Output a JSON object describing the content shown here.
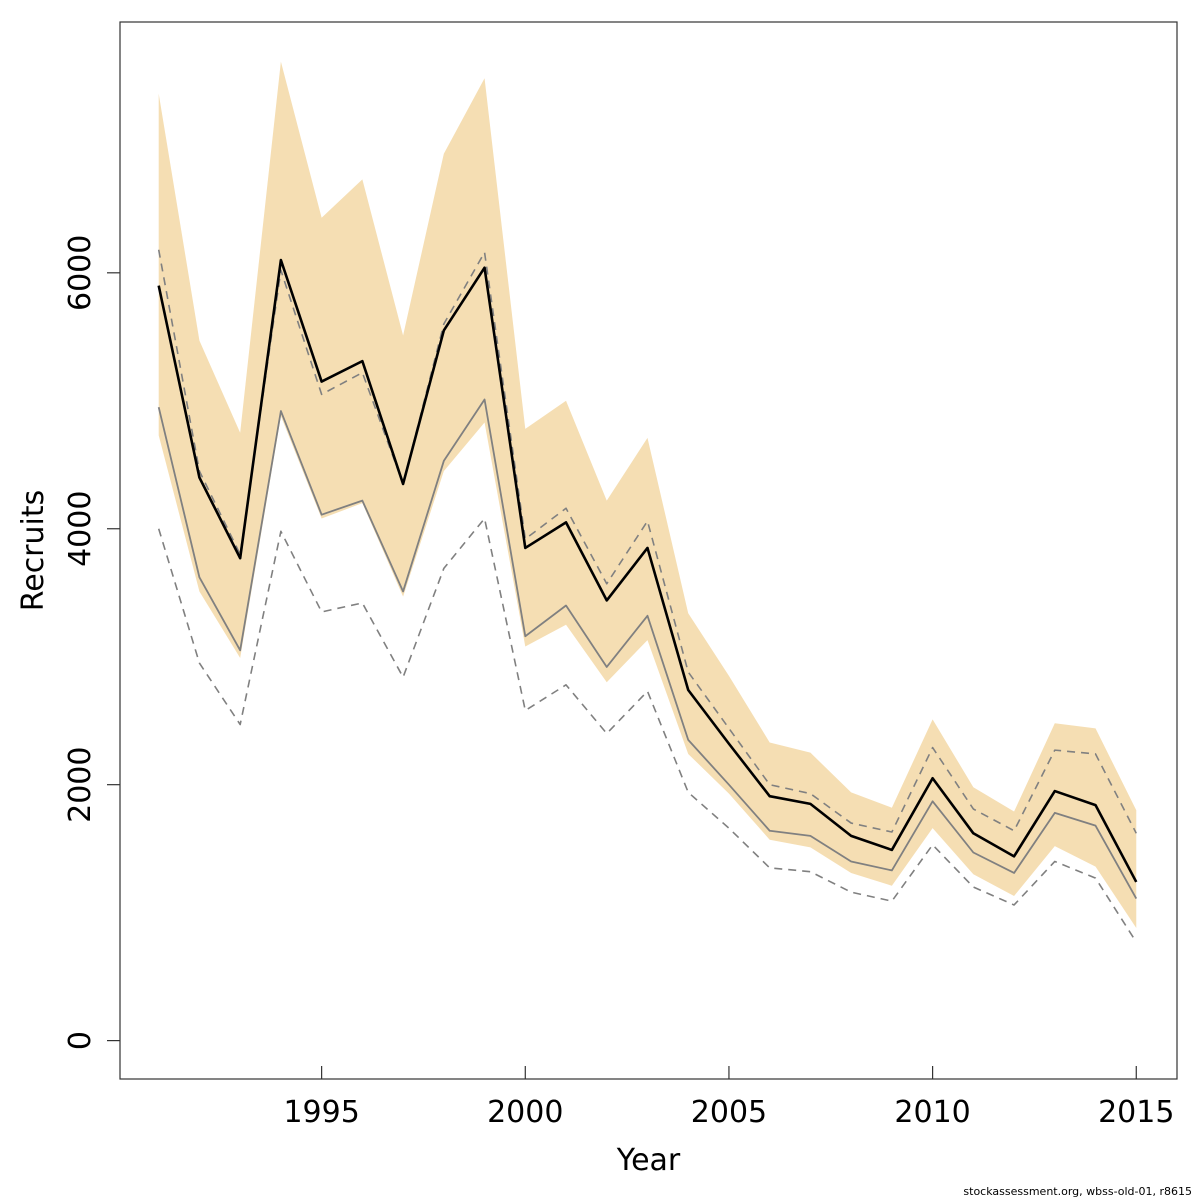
{
  "chart_data": {
    "type": "line",
    "title": "",
    "xlabel": "Year",
    "ylabel": "Recruits",
    "xlim": [
      1990.05,
      2016.0
    ],
    "ylim": [
      -300,
      7960
    ],
    "x_ticks": [
      1995,
      2000,
      2005,
      2010,
      2015
    ],
    "y_ticks": [
      0,
      2000,
      4000,
      6000
    ],
    "grid": false,
    "legend": "none",
    "colors": {
      "band": "#f5deb3",
      "main_line": "#000000",
      "secondary_line": "#808080",
      "dashed_lines": "#808080",
      "axes": "#333333"
    },
    "x": [
      1991,
      1992,
      1993,
      1994,
      1995,
      1996,
      1997,
      1998,
      1999,
      2000,
      2001,
      2002,
      2003,
      2004,
      2005,
      2006,
      2007,
      2008,
      2009,
      2010,
      2011,
      2012,
      2013,
      2014,
      2015
    ],
    "band": {
      "upper": [
        7400,
        5470,
        4750,
        7650,
        6430,
        6730,
        5510,
        6930,
        7520,
        4780,
        5000,
        4220,
        4710,
        3340,
        2850,
        2330,
        2250,
        1940,
        1820,
        2510,
        1980,
        1790,
        2480,
        2440,
        1800
      ],
      "lower": [
        4730,
        3510,
        2990,
        4880,
        4080,
        4200,
        3470,
        4450,
        4830,
        3080,
        3250,
        2800,
        3130,
        2240,
        1930,
        1570,
        1510,
        1310,
        1210,
        1660,
        1300,
        1130,
        1520,
        1360,
        880
      ]
    },
    "series": [
      {
        "style": "solid-thick",
        "values": [
          5900,
          4400,
          3770,
          6100,
          5150,
          5310,
          4350,
          5550,
          6040,
          3850,
          4050,
          3440,
          3850,
          2740,
          2320,
          1910,
          1850,
          1600,
          1490,
          2050,
          1620,
          1440,
          1950,
          1840,
          1240
        ]
      },
      {
        "style": "solid-thin",
        "values": [
          4950,
          3620,
          3050,
          4920,
          4110,
          4220,
          3510,
          4530,
          5010,
          3160,
          3400,
          2920,
          3320,
          2350,
          2000,
          1640,
          1600,
          1400,
          1330,
          1870,
          1470,
          1310,
          1780,
          1680,
          1110
        ]
      },
      {
        "style": "dashed-upper",
        "values": [
          6180,
          4450,
          3800,
          6020,
          5050,
          5220,
          4350,
          5600,
          6160,
          3920,
          4160,
          3570,
          4060,
          2880,
          2440,
          2000,
          1930,
          1700,
          1630,
          2290,
          1810,
          1640,
          2270,
          2240,
          1620
        ]
      },
      {
        "style": "dashed-lower",
        "values": [
          4000,
          2950,
          2470,
          3980,
          3350,
          3420,
          2840,
          3690,
          4080,
          2580,
          2780,
          2400,
          2730,
          1940,
          1660,
          1350,
          1320,
          1160,
          1090,
          1530,
          1200,
          1060,
          1400,
          1270,
          770
        ]
      }
    ]
  },
  "footer": "stockassessment.org, wbss-old-01, r8615"
}
